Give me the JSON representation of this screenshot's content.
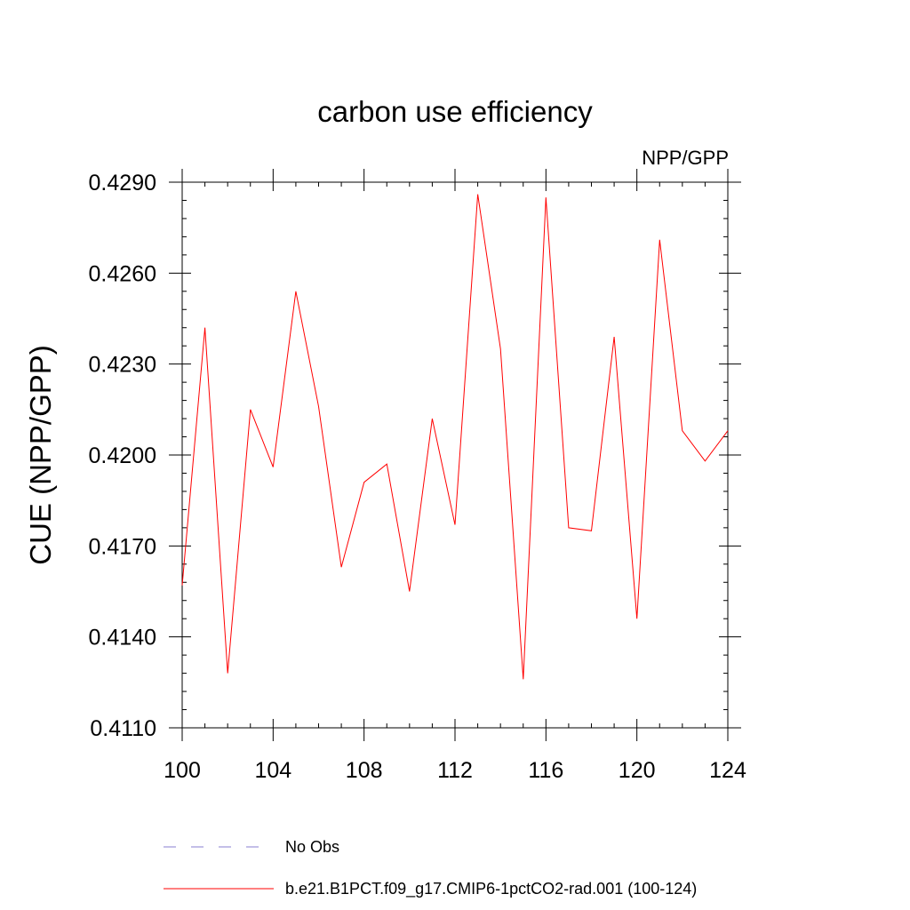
{
  "chart_data": {
    "type": "line",
    "title": "carbon use efficiency",
    "subtitle": "NPP/GPP",
    "ylabel": "CUE  (NPP/GPP)",
    "xlabel": "",
    "xlim": [
      100,
      124
    ],
    "ylim": [
      0.411,
      0.429
    ],
    "xticks": [
      "100",
      "104",
      "108",
      "112",
      "116",
      "120",
      "124"
    ],
    "xtick_values": [
      100,
      104,
      108,
      112,
      116,
      120,
      124
    ],
    "yticks": [
      "0.4110",
      "0.4140",
      "0.4170",
      "0.4200",
      "0.4230",
      "0.4260",
      "0.4290"
    ],
    "ytick_values": [
      0.411,
      0.414,
      0.417,
      0.42,
      0.423,
      0.426,
      0.429
    ],
    "grid": false,
    "legend_position": "bottom",
    "x": [
      100,
      101,
      102,
      103,
      104,
      105,
      106,
      107,
      108,
      109,
      110,
      111,
      112,
      113,
      114,
      115,
      116,
      117,
      118,
      119,
      120,
      121,
      122,
      123,
      124
    ],
    "series": [
      {
        "name": "b.e21.B1PCT.f09_g17.CMIP6-1pctCO2-rad.001 (100-124)",
        "color": "#ff0000",
        "style": "solid",
        "values": [
          0.4157,
          0.4242,
          0.4128,
          0.4215,
          0.4196,
          0.4254,
          0.4216,
          0.4163,
          0.4191,
          0.4197,
          0.4155,
          0.4212,
          0.4177,
          0.4286,
          0.4235,
          0.4126,
          0.4285,
          0.4176,
          0.4175,
          0.4239,
          0.4146,
          0.4271,
          0.4208,
          0.4198,
          0.4208
        ]
      }
    ],
    "legend": [
      {
        "label": "No Obs",
        "color": "#8a7fd0",
        "style": "dashed"
      },
      {
        "label": "b.e21.B1PCT.f09_g17.CMIP6-1pctCO2-rad.001 (100-124)",
        "color": "#ff0000",
        "style": "solid"
      }
    ]
  }
}
